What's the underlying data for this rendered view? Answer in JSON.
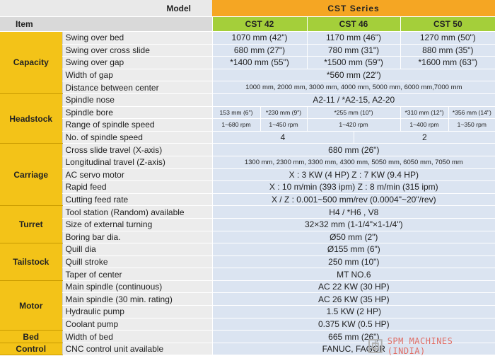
{
  "header": {
    "model_label": "Model",
    "series_label": "CST   Series",
    "item_label": "Item",
    "models": [
      "CST 42",
      "CST 46",
      "CST 50"
    ]
  },
  "groups": {
    "capacity": "Capacity",
    "headstock": "Headstock",
    "carriage": "Carriage",
    "turret": "Turret",
    "tailstock": "Tailstock",
    "motor": "Motor",
    "bed": "Bed",
    "control": "Control"
  },
  "rows": {
    "swing_over_bed": {
      "label": "Swing over bed",
      "v": [
        "1070 mm (42\")",
        "1170 mm (46\")",
        "1270 mm (50\")"
      ]
    },
    "swing_cross_slide": {
      "label": "Swing over cross slide",
      "v": [
        "680 mm (27\")",
        "780 mm (31\")",
        "880 mm (35\")"
      ]
    },
    "swing_gap": {
      "label": "Swing over gap",
      "v": [
        "*1400 mm (55\")",
        "*1500 mm (59\")",
        "*1600 mm (63\")"
      ]
    },
    "width_gap": {
      "label": "Width of gap",
      "v": "*560 mm (22\")"
    },
    "distance_centers": {
      "label": "Distance between center",
      "v": "1000 mm, 2000 mm, 3000 mm, 4000 mm, 5000 mm, 6000 mm,7000 mm"
    },
    "spindle_nose": {
      "label": "Spindle nose",
      "v": "A2-11  / *A2-15,  A2-20"
    },
    "spindle_bore": {
      "label": "Spindle bore",
      "v": [
        "153 mm (6\")",
        "*230 mm (9\")",
        "*255 mm (10\")",
        "*310 mm (12\")",
        "*356 mm (14\")"
      ]
    },
    "speed_range": {
      "label": "Range of spindle speed",
      "v": [
        "1~680 rpm",
        "1~450 rpm",
        "1~420 rpm",
        "1~400 rpm",
        "1~350 rpm"
      ]
    },
    "speed_count": {
      "label": "No. of spindle speed",
      "v": [
        "4",
        "2"
      ]
    },
    "cross_travel": {
      "label": "Cross slide travel (X-axis)",
      "v": "680 mm (26\")"
    },
    "long_travel": {
      "label": "Longitudinal travel (Z-axis)",
      "v": "1300 mm, 2300 mm, 3300 mm, 4300 mm, 5050 mm, 6050 mm, 7050 mm"
    },
    "servo": {
      "label": "AC servo motor",
      "v": "X : 3 KW (4 HP)  Z : 7 KW (9.4 HP)"
    },
    "rapid": {
      "label": "Rapid feed",
      "v": "X : 10 m/min (393 ipm)  Z : 8 m/min (315 ipm)"
    },
    "cut_feed": {
      "label": "Cutting feed rate",
      "v": "X / Z : 0.001~500 mm/rev (0.0004\"~20\"/rev)"
    },
    "tool_station": {
      "label": "Tool station (Random) available",
      "v": "H4  / *H6 , V8"
    },
    "ext_turning": {
      "label": "Size of external turning",
      "v": "32×32 mm (1-1/4\"×1-1/4\")"
    },
    "boring": {
      "label": "Boring bar dia.",
      "v": "Ø50 mm (2\")"
    },
    "quill_dia": {
      "label": "Quill dia",
      "v": "Ø155 mm (6\")"
    },
    "quill_stroke": {
      "label": "Quill stroke",
      "v": "250 mm (10\")"
    },
    "taper": {
      "label": "Taper of center",
      "v": "MT NO.6"
    },
    "main_cont": {
      "label": "Main spindle (continuous)",
      "v": "AC 22 KW (30 HP)"
    },
    "main_30": {
      "label": "Main spindle (30 min. rating)",
      "v": "AC 26 KW (35 HP)"
    },
    "hyd_pump": {
      "label": "Hydraulic pump",
      "v": "1.5 KW (2 HP)"
    },
    "coolant": {
      "label": "Coolant pump",
      "v": "0.375 KW (0.5 HP)"
    },
    "bed_width": {
      "label": "Width of bed",
      "v": "665 mm (26\")"
    },
    "cnc": {
      "label": "CNC control unit available",
      "v": "FANUC,  FAGOR"
    }
  },
  "watermark": {
    "text": "SPM MACHINES (INDIA)",
    "icon": "spm-logo-icon"
  }
}
